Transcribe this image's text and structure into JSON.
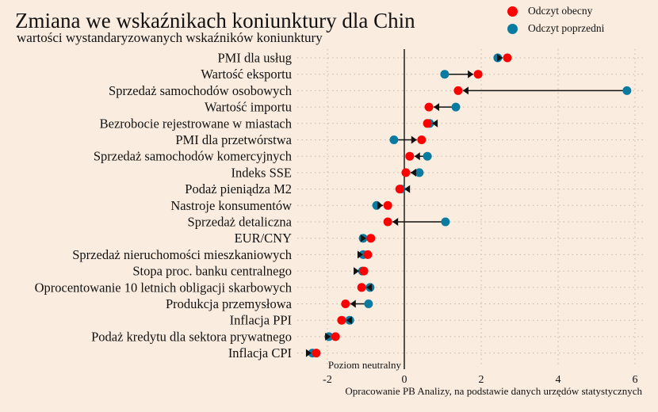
{
  "chart_data": {
    "type": "scatter",
    "subtype": "dumbbell-arrow",
    "title": "Zmiana we wskaźnikach koniunktury dla Chin",
    "subtitle": "wartości wystandaryzowanych wskaźników koniunktury",
    "xlabel": "",
    "ylabel": "",
    "xlim": [
      -2.5,
      6.2
    ],
    "xticks": [
      -2,
      0,
      2,
      4,
      6
    ],
    "xtick_labels": [
      "-2",
      "0",
      "2",
      "4",
      "6"
    ],
    "grid": true,
    "reference_line": {
      "x": 0,
      "label": "Poziom neutralny"
    },
    "source_note": "Opracowanie PB Analizy, na podstawie danych urzędów statystycznych",
    "legend_position": "top-right",
    "series": [
      {
        "name": "Odczyt obecny",
        "color": "#FF0000"
      },
      {
        "name": "Odczyt poprzedni",
        "color": "#0A7BA0"
      }
    ],
    "categories": [
      "PMI dla usług",
      "Wartość eksportu",
      "Sprzedaż samochodów osobowych",
      "Wartość importu",
      "Bezrobocie rejestrowane w miastach",
      "PMI dla przetwórstwa",
      "Sprzedaż samochodów komercyjnych",
      "Indeks SSE",
      "Podaż pieniądza M2",
      "Nastroje konsumentów",
      "Sprzedaż detaliczna",
      "EUR/CNY",
      "Sprzedaż nieruchomości mieszkaniowych",
      "Stopa proc. banku centralnego",
      "Oprocentowanie 10 letnich obligacji skarbowych",
      "Produkcja przemysłowa",
      "Inflacja PPI",
      "Podaż kredytu dla sektora prywatnego",
      "Inflacja CPI"
    ],
    "current": [
      2.68,
      1.92,
      1.4,
      0.64,
      0.6,
      0.45,
      0.14,
      0.04,
      -0.12,
      -0.43,
      -0.43,
      -0.87,
      -0.95,
      -1.05,
      -1.11,
      -1.53,
      -1.63,
      -1.79,
      -2.29
    ],
    "previous": [
      2.43,
      1.05,
      5.79,
      1.34,
      0.66,
      -0.27,
      0.6,
      0.39,
      -0.08,
      -0.72,
      1.07,
      -1.07,
      -1.07,
      -1.09,
      -0.89,
      -0.93,
      -1.42,
      -1.96,
      -2.39
    ]
  }
}
